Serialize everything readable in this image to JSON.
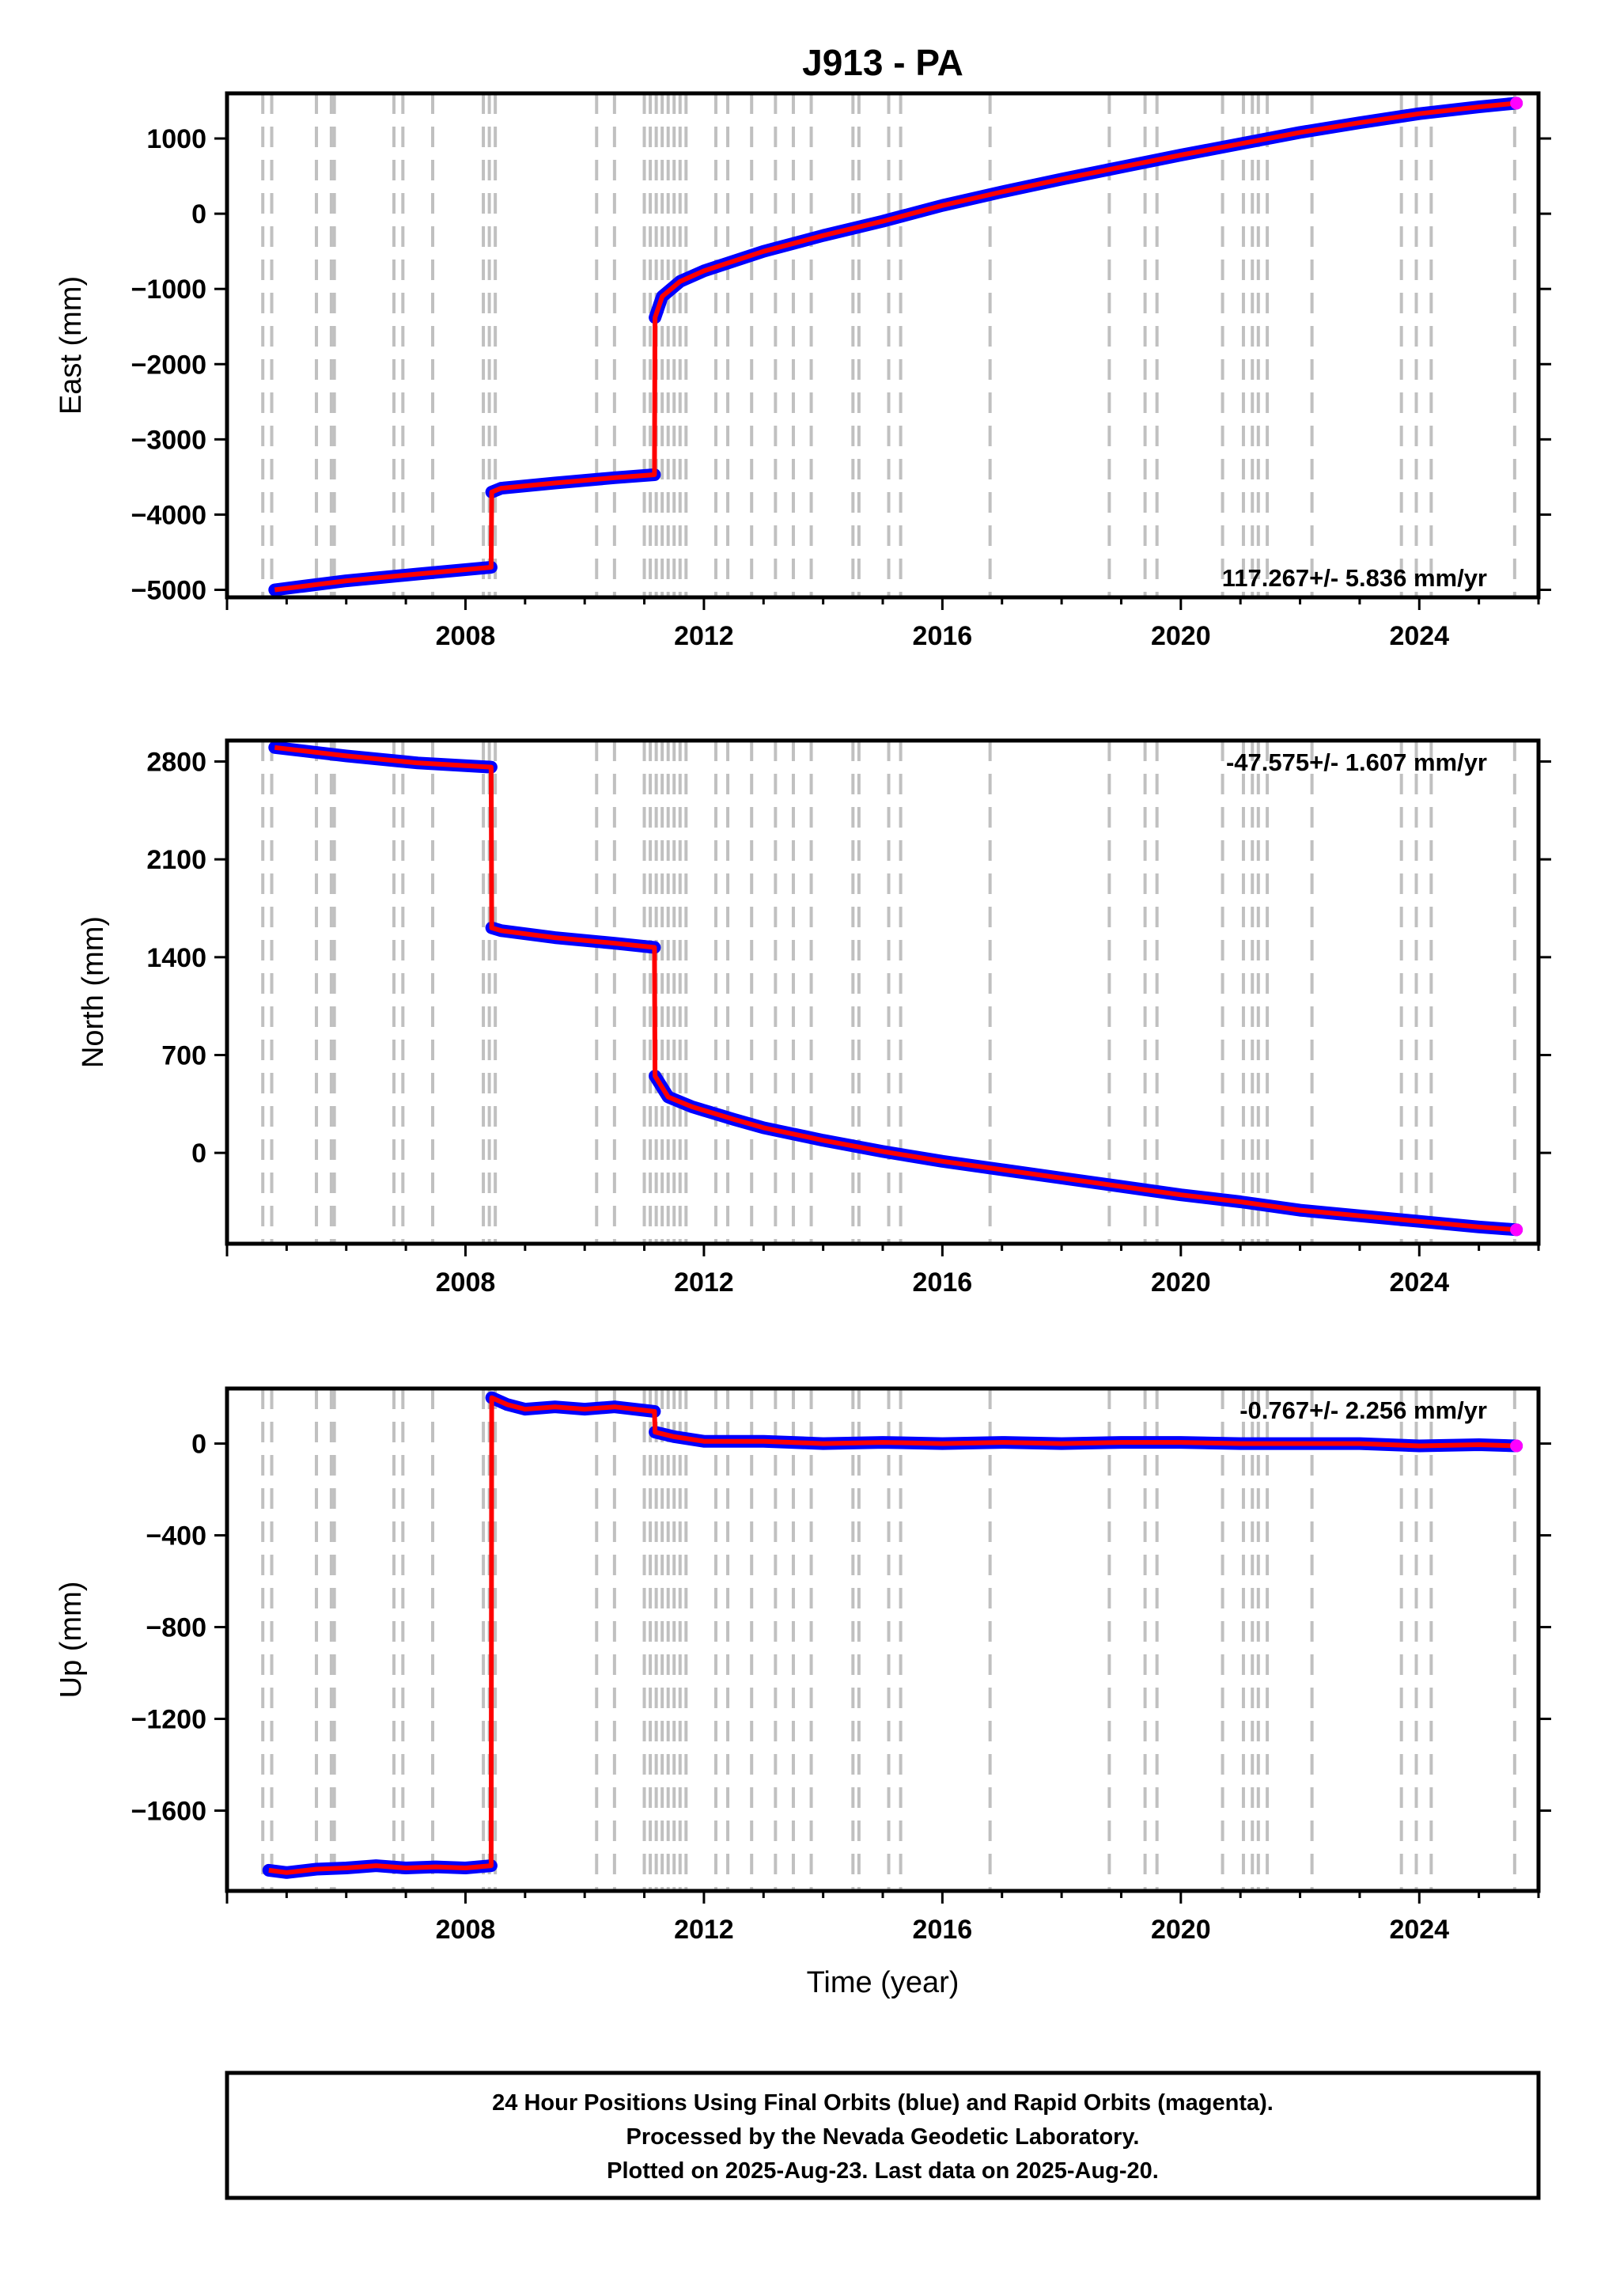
{
  "title": "J913 - PA",
  "colors": {
    "final": "#0000ff",
    "rapid": "#ff00ff",
    "model": "#ff0000",
    "event_line": "#c0c0c0"
  },
  "chart_data": [
    {
      "type": "line",
      "panel": "east",
      "ylabel": "East (mm)",
      "xlabel": "",
      "xlim": [
        2004.0,
        2026.0
      ],
      "ylim": [
        -5100,
        1600
      ],
      "xticks": [
        "2008",
        "2012",
        "2016",
        "2020",
        "2024"
      ],
      "yticks": [
        "1000",
        "0",
        "-1000",
        "-2000",
        "-3000",
        "-4000",
        "-5000"
      ],
      "rate_text": "117.267+/- 5.836 mm/yr",
      "rate_position": "bottom-right",
      "series": [
        {
          "x": [
            2004.8,
            2006.0,
            2007.2,
            2008.43
          ],
          "y": [
            -5000,
            -4880,
            -4790,
            -4700
          ]
        },
        {
          "x": [
            2008.44,
            2008.6,
            2009.5,
            2010.5,
            2011.17
          ],
          "y": [
            -3700,
            -3650,
            -3580,
            -3510,
            -3470
          ]
        },
        {
          "x": [
            2011.18,
            2011.3,
            2011.6,
            2012.0,
            2013.0,
            2014.0,
            2015.0,
            2016.0,
            2017.0,
            2018.0,
            2019.0,
            2020.0,
            2021.0,
            2022.0,
            2023.0,
            2024.0,
            2025.0,
            2025.63
          ],
          "y": [
            -1380,
            -1100,
            -900,
            -760,
            -500,
            -290,
            -100,
            110,
            290,
            460,
            620,
            780,
            930,
            1080,
            1210,
            1330,
            1420,
            1470
          ]
        }
      ]
    },
    {
      "type": "line",
      "panel": "north",
      "ylabel": "North (mm)",
      "xlabel": "",
      "xlim": [
        2004.0,
        2026.0
      ],
      "ylim": [
        -650,
        2950
      ],
      "xticks": [
        "2008",
        "2012",
        "2016",
        "2020",
        "2024"
      ],
      "yticks": [
        "2800",
        "2100",
        "1400",
        "700",
        "0"
      ],
      "rate_text": "-47.575+/- 1.607 mm/yr",
      "rate_position": "top-right",
      "series": [
        {
          "x": [
            2004.8,
            2006.0,
            2007.2,
            2008.43
          ],
          "y": [
            2900,
            2840,
            2790,
            2760
          ]
        },
        {
          "x": [
            2008.44,
            2008.6,
            2009.5,
            2010.5,
            2011.17
          ],
          "y": [
            1610,
            1590,
            1540,
            1500,
            1470
          ]
        },
        {
          "x": [
            2011.18,
            2011.4,
            2011.8,
            2012.5,
            2013.0,
            2014.0,
            2015.0,
            2016.0,
            2017.0,
            2018.0,
            2019.0,
            2020.0,
            2021.0,
            2022.0,
            2023.0,
            2024.0,
            2025.0,
            2025.63
          ],
          "y": [
            550,
            400,
            330,
            240,
            180,
            90,
            10,
            -60,
            -120,
            -180,
            -240,
            -300,
            -350,
            -410,
            -450,
            -490,
            -530,
            -550
          ]
        }
      ]
    },
    {
      "type": "line",
      "panel": "up",
      "ylabel": "Up (mm)",
      "xlabel": "Time (year)",
      "xlim": [
        2004.0,
        2026.0
      ],
      "ylim": [
        -1950,
        240
      ],
      "xticks": [
        "2008",
        "2012",
        "2016",
        "2020",
        "2024"
      ],
      "yticks": [
        "0",
        "-400",
        "-800",
        "-1200",
        "-1600"
      ],
      "rate_text": "-0.767+/- 2.256 mm/yr",
      "rate_position": "top-right",
      "series": [
        {
          "x": [
            2004.7,
            2005.0,
            2005.5,
            2006.0,
            2006.5,
            2007.0,
            2007.5,
            2008.0,
            2008.43
          ],
          "y": [
            -1860,
            -1870,
            -1855,
            -1850,
            -1840,
            -1850,
            -1845,
            -1850,
            -1840
          ]
        },
        {
          "x": [
            2008.44,
            2008.7,
            2009.0,
            2009.5,
            2010.0,
            2010.5,
            2011.17
          ],
          "y": [
            200,
            170,
            150,
            160,
            150,
            160,
            140
          ]
        },
        {
          "x": [
            2011.18,
            2011.5,
            2012.0,
            2012.5,
            2013.0,
            2014.0,
            2015.0,
            2016.0,
            2017.0,
            2018.0,
            2019.0,
            2020.0,
            2021.0,
            2022.0,
            2023.0,
            2024.0,
            2025.0,
            2025.63
          ],
          "y": [
            50,
            30,
            10,
            10,
            10,
            0,
            5,
            0,
            5,
            0,
            5,
            5,
            0,
            0,
            0,
            -10,
            -5,
            -10
          ]
        }
      ]
    }
  ],
  "event_lines": [
    2004.6,
    2004.75,
    2005.5,
    2005.75,
    2005.8,
    2006.8,
    2006.95,
    2007.45,
    2008.3,
    2008.4,
    2008.5,
    2010.2,
    2010.5,
    2011.0,
    2011.1,
    2011.2,
    2011.3,
    2011.4,
    2011.5,
    2011.6,
    2011.7,
    2012.2,
    2012.4,
    2012.8,
    2013.2,
    2013.5,
    2013.8,
    2014.5,
    2014.6,
    2015.1,
    2015.3,
    2016.8,
    2018.8,
    2019.4,
    2019.6,
    2020.7,
    2021.05,
    2021.2,
    2021.3,
    2021.45,
    2022.2,
    2023.7,
    2023.95,
    2024.2,
    2025.6
  ],
  "footer": {
    "line1": "24 Hour Positions Using Final Orbits (blue) and Rapid Orbits (magenta).",
    "line2": "Processed by the Nevada Geodetic Laboratory.",
    "line3": "Plotted on 2025-Aug-23. Last data on 2025-Aug-20."
  }
}
